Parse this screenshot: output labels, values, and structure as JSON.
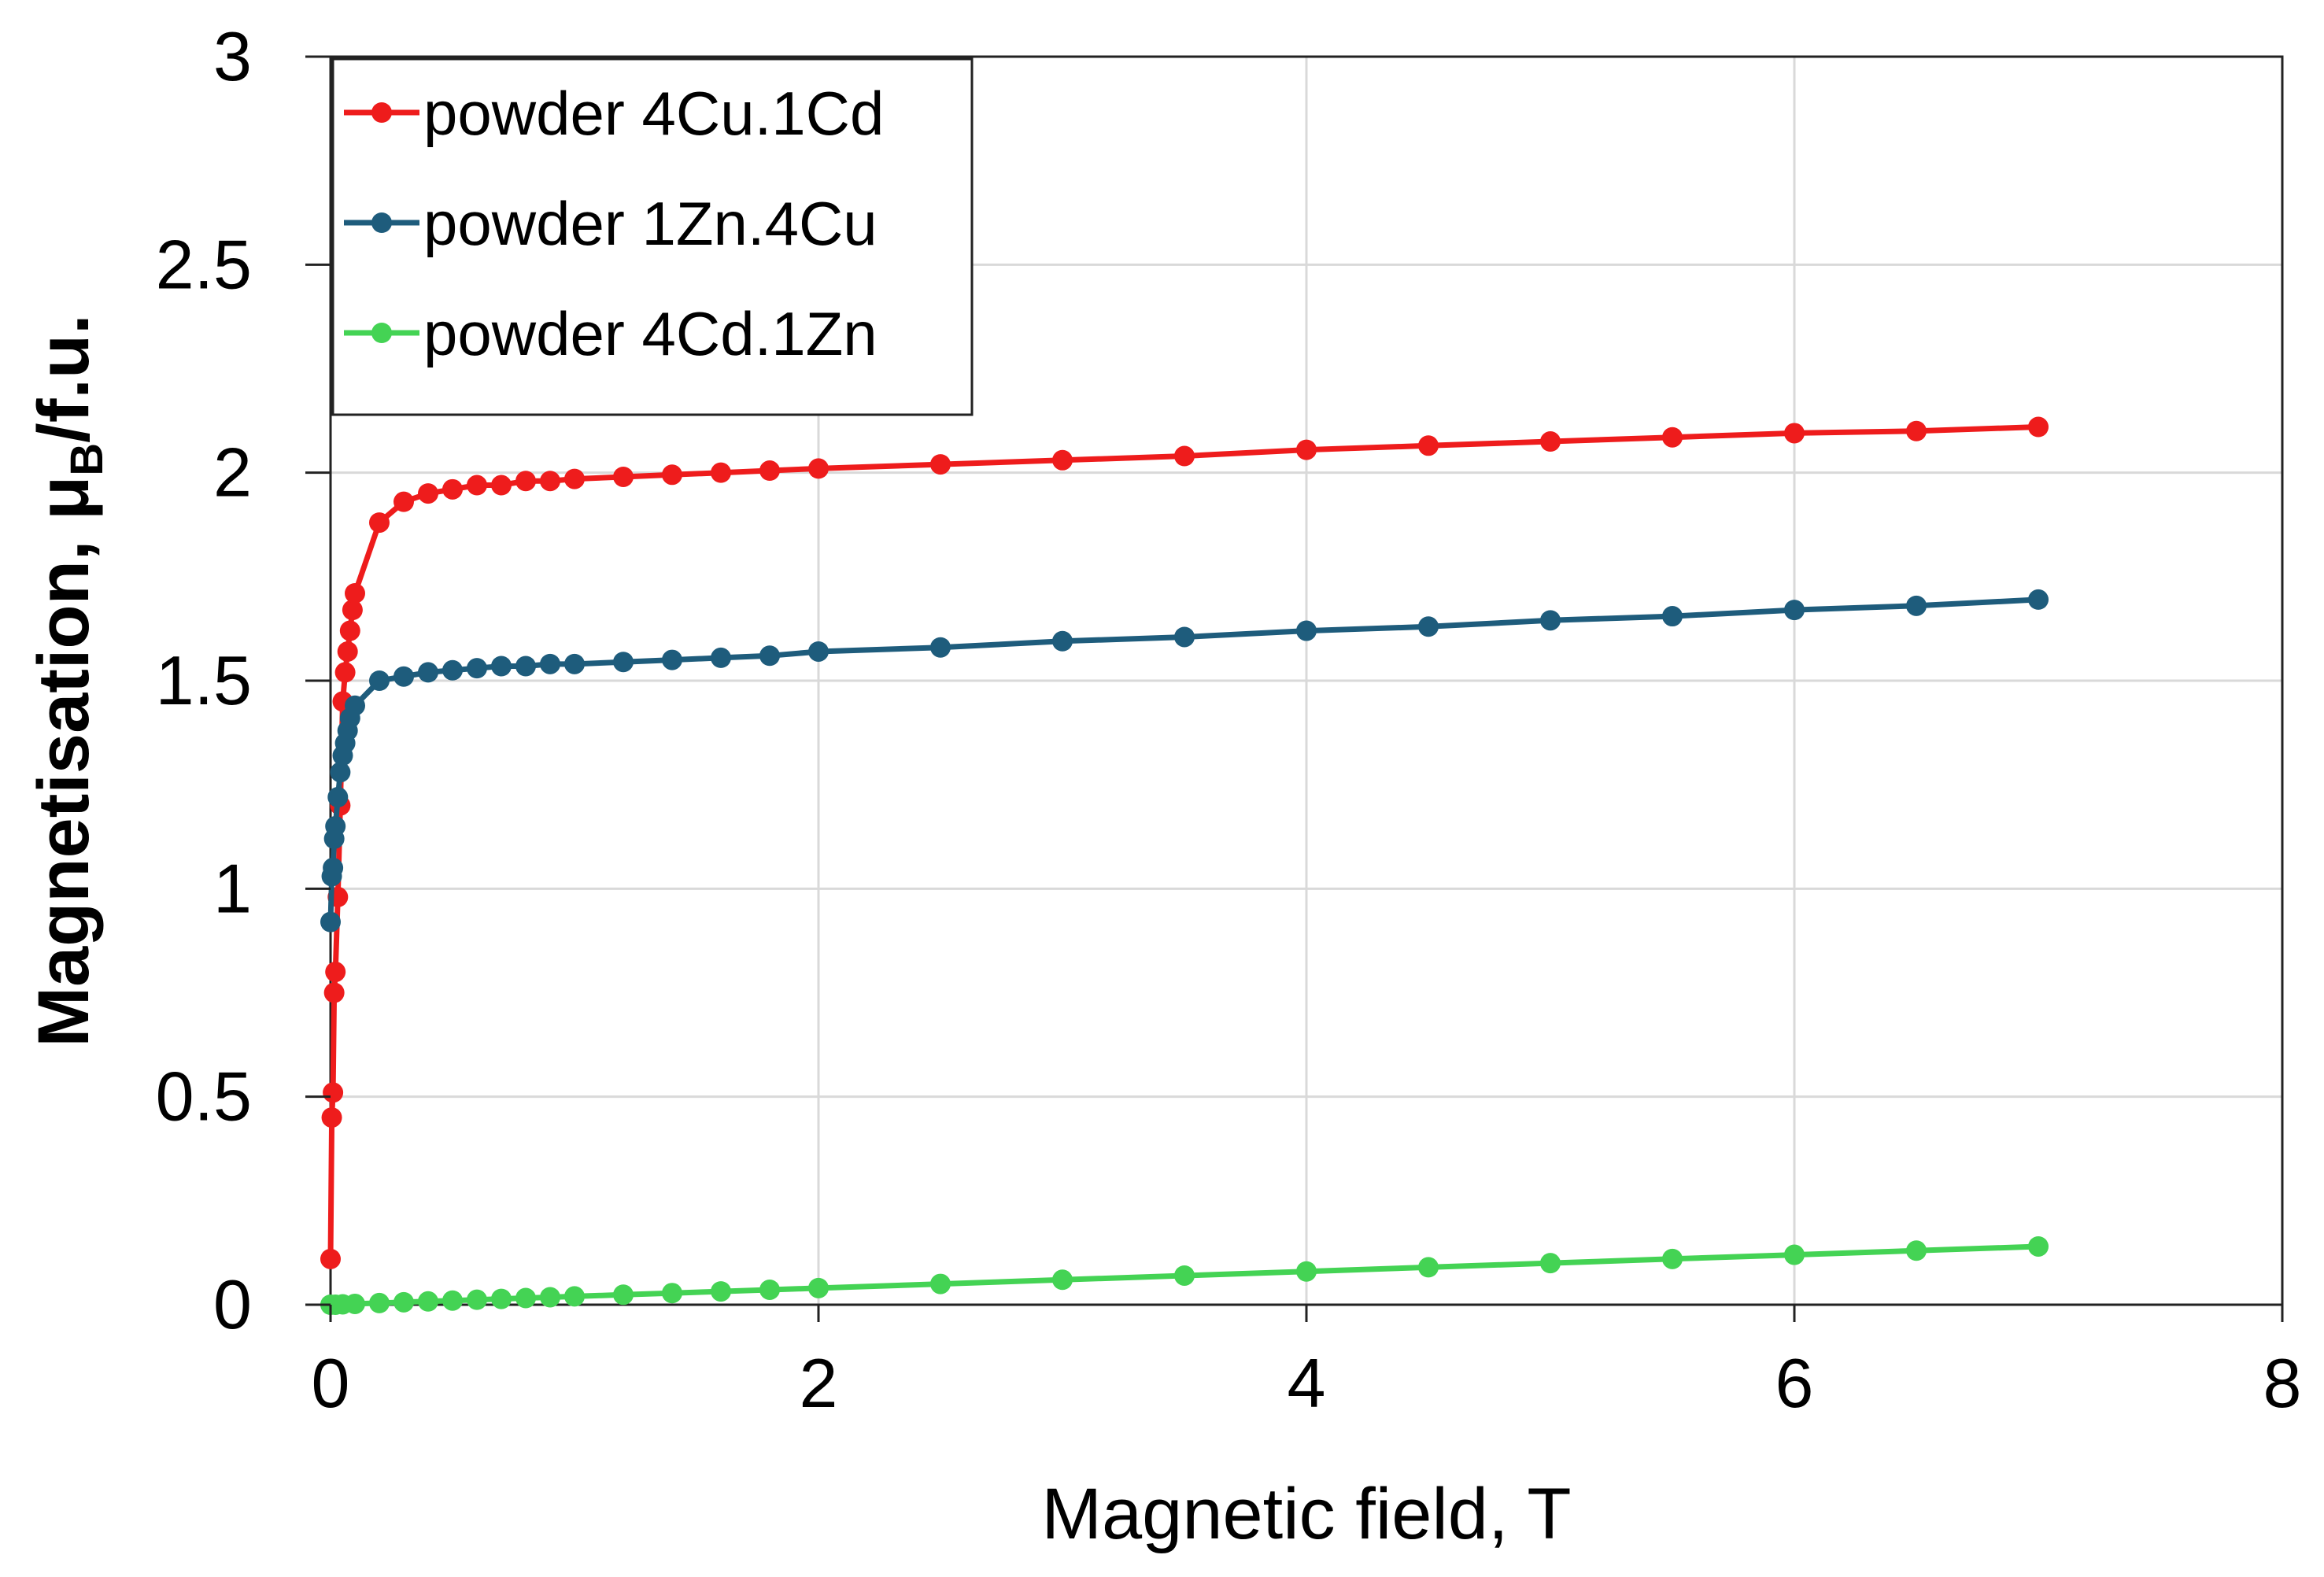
{
  "chart_data": {
    "type": "line",
    "title": "",
    "xlabel": "Magnetic field, T",
    "ylabel": {
      "main": "Magnetisation, μ",
      "sub": "B",
      "unit": "/f.u."
    },
    "xlim": [
      0,
      8
    ],
    "ylim": [
      0,
      3
    ],
    "xticks": [
      0,
      2,
      4,
      6,
      8
    ],
    "yticks": [
      0,
      0.5,
      1,
      1.5,
      2,
      2.5,
      3
    ],
    "ytick_labels": [
      "0",
      "0.5",
      "1",
      "1.5",
      "2",
      "2.5",
      "3"
    ],
    "grid": true,
    "legend_position": "top-left",
    "series": [
      {
        "name": "powder 4Cu.1Cd",
        "color": "#ee1c1c",
        "x": [
          0.0,
          0.005,
          0.01,
          0.015,
          0.02,
          0.03,
          0.04,
          0.05,
          0.06,
          0.07,
          0.08,
          0.09,
          0.1,
          0.2,
          0.3,
          0.4,
          0.5,
          0.6,
          0.7,
          0.8,
          0.9,
          1.0,
          1.2,
          1.4,
          1.6,
          1.8,
          2.0,
          2.5,
          3.0,
          3.5,
          4.0,
          4.5,
          5.0,
          5.5,
          6.0,
          6.5,
          7.0
        ],
        "y": [
          0.11,
          0.45,
          0.51,
          0.75,
          0.8,
          0.98,
          1.2,
          1.45,
          1.52,
          1.57,
          1.62,
          1.67,
          1.71,
          1.88,
          1.93,
          1.95,
          1.96,
          1.97,
          1.97,
          1.98,
          1.98,
          1.985,
          1.99,
          1.995,
          2.0,
          2.005,
          2.01,
          2.02,
          2.03,
          2.04,
          2.055,
          2.065,
          2.075,
          2.085,
          2.095,
          2.1,
          2.11
        ]
      },
      {
        "name": "powder 1Zn.4Cu",
        "color": "#1e5c7c",
        "x": [
          0.0,
          0.005,
          0.01,
          0.015,
          0.02,
          0.03,
          0.04,
          0.05,
          0.06,
          0.07,
          0.08,
          0.1,
          0.2,
          0.3,
          0.4,
          0.5,
          0.6,
          0.7,
          0.8,
          0.9,
          1.0,
          1.2,
          1.4,
          1.6,
          1.8,
          2.0,
          2.5,
          3.0,
          3.5,
          4.0,
          4.5,
          5.0,
          5.5,
          6.0,
          6.5,
          7.0
        ],
        "y": [
          0.92,
          1.03,
          1.05,
          1.12,
          1.15,
          1.22,
          1.28,
          1.32,
          1.35,
          1.38,
          1.41,
          1.44,
          1.5,
          1.51,
          1.52,
          1.525,
          1.53,
          1.535,
          1.535,
          1.54,
          1.54,
          1.545,
          1.55,
          1.555,
          1.56,
          1.57,
          1.58,
          1.595,
          1.605,
          1.62,
          1.63,
          1.645,
          1.655,
          1.67,
          1.68,
          1.695
        ]
      },
      {
        "name": "powder 4Cd.1Zn",
        "color": "#44d354",
        "x": [
          0.0,
          0.02,
          0.05,
          0.1,
          0.2,
          0.3,
          0.4,
          0.5,
          0.6,
          0.7,
          0.8,
          0.9,
          1.0,
          1.2,
          1.4,
          1.6,
          1.8,
          2.0,
          2.5,
          3.0,
          3.5,
          4.0,
          4.5,
          5.0,
          5.5,
          6.0,
          6.5,
          7.0
        ],
        "y": [
          0.0,
          0.0,
          0.001,
          0.002,
          0.004,
          0.006,
          0.008,
          0.01,
          0.012,
          0.014,
          0.016,
          0.018,
          0.02,
          0.024,
          0.028,
          0.032,
          0.036,
          0.04,
          0.05,
          0.06,
          0.07,
          0.08,
          0.09,
          0.1,
          0.11,
          0.12,
          0.13,
          0.14
        ]
      }
    ]
  }
}
